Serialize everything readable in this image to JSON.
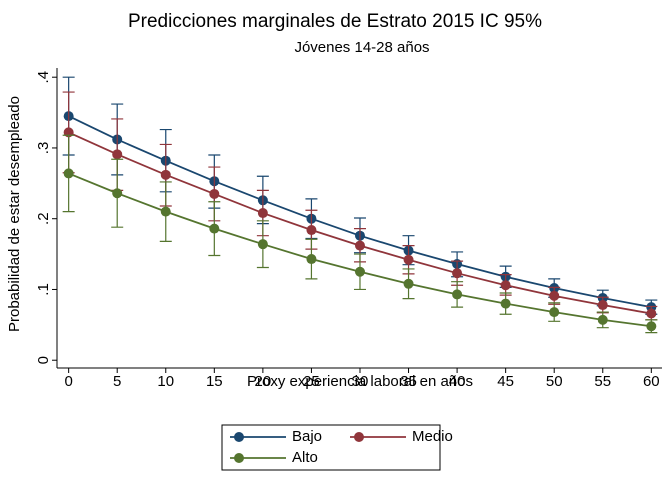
{
  "chart_data": {
    "type": "line",
    "title": "Predicciones marginales de Estrato 2015 IC 95%",
    "subtitle": "Jóvenes 14-28 años",
    "x_label": "Proxy experiencia laboral en años",
    "y_label": "Probabilidad de estar desempleado",
    "x": [
      0,
      5,
      10,
      15,
      20,
      25,
      30,
      35,
      40,
      45,
      50,
      55,
      60
    ],
    "xlim": [
      -1.2,
      61.1
    ],
    "xticks": [
      0,
      5,
      10,
      15,
      20,
      25,
      30,
      35,
      40,
      45,
      50,
      55,
      60
    ],
    "ylim": [
      -0.011,
      0.413
    ],
    "yticks": [
      0,
      {
        "value": 0.1,
        "label": ".1"
      },
      {
        "value": 0.2,
        "label": ".2"
      },
      {
        "value": 0.3,
        "label": ".3"
      },
      {
        "value": 0.4,
        "label": ".4"
      }
    ],
    "legend": "bottom",
    "series": [
      {
        "name": "Bajo",
        "color": "#1a476f",
        "values": [
          0.345,
          0.312,
          0.282,
          0.253,
          0.226,
          0.2,
          0.176,
          0.155,
          0.136,
          0.118,
          0.102,
          0.088,
          0.075
        ],
        "ci_low": [
          0.29,
          0.262,
          0.238,
          0.215,
          0.193,
          0.172,
          0.152,
          0.135,
          0.118,
          0.103,
          0.089,
          0.077,
          0.065
        ],
        "ci_high": [
          0.4,
          0.362,
          0.326,
          0.29,
          0.26,
          0.228,
          0.201,
          0.176,
          0.153,
          0.133,
          0.115,
          0.099,
          0.085
        ]
      },
      {
        "name": "Medio",
        "color": "#90353b",
        "values": [
          0.322,
          0.291,
          0.262,
          0.235,
          0.208,
          0.184,
          0.162,
          0.142,
          0.123,
          0.106,
          0.091,
          0.078,
          0.066
        ],
        "ci_low": [
          0.265,
          0.24,
          0.218,
          0.197,
          0.176,
          0.157,
          0.139,
          0.122,
          0.106,
          0.092,
          0.079,
          0.067,
          0.057
        ],
        "ci_high": [
          0.379,
          0.341,
          0.305,
          0.273,
          0.24,
          0.212,
          0.186,
          0.162,
          0.14,
          0.121,
          0.103,
          0.089,
          0.076
        ]
      },
      {
        "name": "Alto",
        "color": "#55752f",
        "values": [
          0.264,
          0.236,
          0.21,
          0.186,
          0.164,
          0.143,
          0.125,
          0.108,
          0.093,
          0.08,
          0.068,
          0.057,
          0.048
        ],
        "ci_low": [
          0.21,
          0.188,
          0.168,
          0.148,
          0.131,
          0.115,
          0.1,
          0.087,
          0.075,
          0.065,
          0.055,
          0.046,
          0.039
        ],
        "ci_high": [
          0.318,
          0.284,
          0.252,
          0.224,
          0.197,
          0.171,
          0.15,
          0.129,
          0.111,
          0.095,
          0.081,
          0.068,
          0.057
        ]
      }
    ]
  }
}
